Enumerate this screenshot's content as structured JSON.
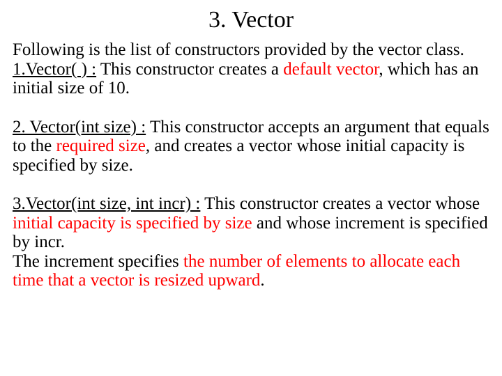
{
  "title": "3. Vector",
  "p1": {
    "intro": "Following is the list of constructors provided by the vector class.",
    "label": "1.Vector( ) :",
    "t1": " This constructor creates a ",
    "red1": "default vector",
    "t2": ", which has an initial size of 10."
  },
  "p2": {
    "label": "2. Vector(int size) :",
    "t1": " This constructor accepts an argument that equals to the ",
    "red1": "required size",
    "t2": ", and creates a vector whose initial capacity is specified by size."
  },
  "p3": {
    "label": "3.Vector(int size, int incr) :",
    "t1": " This constructor creates a vector whose ",
    "red1": "initial capacity is specified by size ",
    "t2": "and whose increment is specified by incr.",
    "t3": "The increment specifies ",
    "red2": "the number of elements to allocate each time that a vector is resized upward",
    "t4": "."
  },
  "colors": {
    "text": "#000000",
    "highlight": "#ff0000",
    "background": "#ffffff"
  }
}
